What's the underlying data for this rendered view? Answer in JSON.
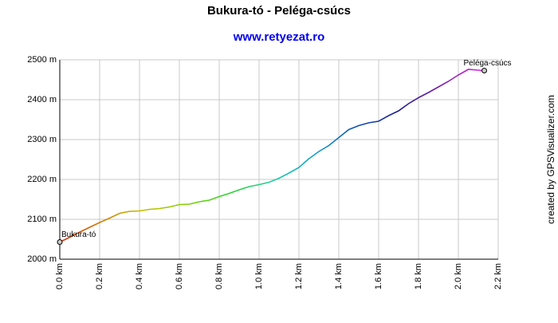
{
  "chart_data": {
    "type": "line",
    "title": "Bukura-tó - Peléga-csúcs",
    "subtitle": "www.retyezat.ro",
    "credit": "created by GPSVisualizer.com",
    "start_label": "Bukura-tó",
    "end_label": "Peléga-csúcs",
    "x": [
      0.0,
      0.05,
      0.1,
      0.15,
      0.2,
      0.25,
      0.3,
      0.35,
      0.4,
      0.45,
      0.5,
      0.55,
      0.6,
      0.65,
      0.7,
      0.75,
      0.8,
      0.85,
      0.9,
      0.95,
      1.0,
      1.05,
      1.1,
      1.15,
      1.2,
      1.25,
      1.3,
      1.35,
      1.4,
      1.45,
      1.5,
      1.55,
      1.6,
      1.65,
      1.7,
      1.75,
      1.8,
      1.85,
      1.9,
      1.95,
      2.0,
      2.05,
      2.1,
      2.13
    ],
    "values": [
      2043,
      2055,
      2068,
      2080,
      2092,
      2103,
      2115,
      2120,
      2121,
      2125,
      2127,
      2131,
      2137,
      2138,
      2144,
      2148,
      2157,
      2165,
      2174,
      2182,
      2187,
      2193,
      2203,
      2216,
      2230,
      2252,
      2270,
      2285,
      2305,
      2325,
      2335,
      2342,
      2346,
      2360,
      2372,
      2390,
      2405,
      2418,
      2432,
      2446,
      2462,
      2476,
      2474,
      2473
    ],
    "gradient": [
      "#d03010",
      "#d08000",
      "#c0c000",
      "#80d000",
      "#30d030",
      "#20d0a0",
      "#10a0d0",
      "#1050b0",
      "#202090",
      "#8020b0",
      "#e020e0"
    ],
    "xlim": [
      0,
      2.2
    ],
    "ylim": [
      2000,
      2500
    ],
    "grid": true,
    "xticks": [
      {
        "value": 0,
        "label": "0.0 km"
      },
      {
        "value": 0.2,
        "label": "0.2 km"
      },
      {
        "value": 0.4,
        "label": "0.4 km"
      },
      {
        "value": 0.6,
        "label": "0.6 km"
      },
      {
        "value": 0.8,
        "label": "0.8 km"
      },
      {
        "value": 1.0,
        "label": "1.0 km"
      },
      {
        "value": 1.2,
        "label": "1.2 km"
      },
      {
        "value": 1.4,
        "label": "1.4 km"
      },
      {
        "value": 1.6,
        "label": "1.6 km"
      },
      {
        "value": 1.8,
        "label": "1.8 km"
      },
      {
        "value": 2.0,
        "label": "2.0 km"
      },
      {
        "value": 2.2,
        "label": "2.2 km"
      }
    ],
    "yticks": [
      {
        "value": 2000,
        "label": "2000 m"
      },
      {
        "value": 2100,
        "label": "2100 m"
      },
      {
        "value": 2200,
        "label": "2200 m"
      },
      {
        "value": 2300,
        "label": "2300 m"
      },
      {
        "value": 2400,
        "label": "2400 m"
      },
      {
        "value": 2500,
        "label": "2500 m"
      }
    ]
  }
}
